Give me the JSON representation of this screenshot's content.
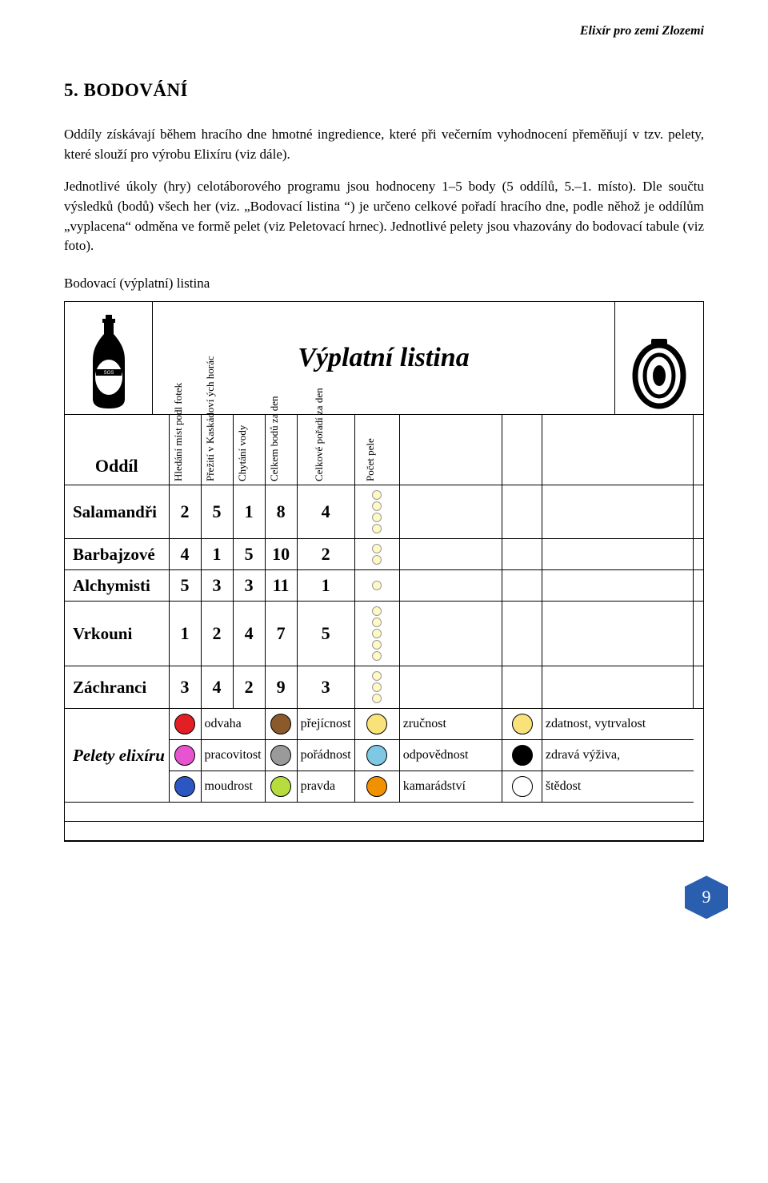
{
  "header": {
    "running_title": "Elixír pro zemi Zlozemi"
  },
  "section": {
    "title": "5. BODOVÁNÍ",
    "para1": "Oddíly získávají během hracího dne hmotné ingredience, které při večerním vyhodnocení přeměňují v tzv. pelety, které slouží pro výrobu Elixíru (viz dále).",
    "para2": "Jednotlivé úkoly (hry) celotáborového programu jsou hodnoceny 1–5 body (5 oddílů, 5.–1. místo). Dle součtu výsledků (bodů) všech her (viz. „Bodovací listina “) je určeno celkové pořadí hracího dne, podle něhož je oddílům „vyplacena“ odměna ve formě pelet (viz Peletovací hrnec). Jednotlivé pelety jsou vhazovány do bodovací tabule (viz foto).",
    "subtitle": "Bodovací (výplatní) listina"
  },
  "sheet": {
    "title": "Výplatní listina",
    "col_oddil": "Oddíl",
    "cols": {
      "c1": "Hledání míst podl fotek",
      "c2": "Přežití v Kaskádoví ých horác",
      "c3": "Chytání vody",
      "c4": "Celkem bodů za den",
      "c5": "Celkové pořadí za den",
      "c6": "Počet pele"
    },
    "rows": [
      {
        "team": "Salamandři",
        "v": [
          "2",
          "5",
          "1",
          "8",
          "4"
        ],
        "dots": 4
      },
      {
        "team": "Barbajzové",
        "v": [
          "4",
          "1",
          "5",
          "10",
          "2"
        ],
        "dots": 2
      },
      {
        "team": "Alchymisti",
        "v": [
          "5",
          "3",
          "3",
          "11",
          "1"
        ],
        "dots": 1
      },
      {
        "team": "Vrkouni",
        "v": [
          "1",
          "2",
          "4",
          "7",
          "5"
        ],
        "dots": 5
      },
      {
        "team": "Záchranci",
        "v": [
          "3",
          "4",
          "2",
          "9",
          "3"
        ],
        "dots": 3
      }
    ]
  },
  "legend": {
    "head": "Pelety elixíru",
    "row1": [
      {
        "color": "#e31e24",
        "label": "odvaha"
      },
      {
        "color": "#8b5a2b",
        "label": "přejícnost"
      },
      {
        "color": "#f9e27a",
        "label": "zručnost"
      },
      {
        "color": "#f9e27a",
        "label": "zdatnost, vytrvalost"
      }
    ],
    "row2": [
      {
        "color": "#e754d0",
        "label": "pracovitost"
      },
      {
        "color": "#9a9a9a",
        "label": "pořádnost"
      },
      {
        "color": "#7ec8e3",
        "label": "odpovědnost"
      },
      {
        "color": "#000000",
        "label": "zdravá výživa,"
      }
    ],
    "row3": [
      {
        "color": "#2c57c2",
        "label": "moudrost"
      },
      {
        "color": "#b6dc3e",
        "label": "pravda"
      },
      {
        "color": "#f29100",
        "label": "kamarádství"
      },
      {
        "color": "#ffffff",
        "label": "štědost"
      }
    ]
  },
  "page_number": "9"
}
